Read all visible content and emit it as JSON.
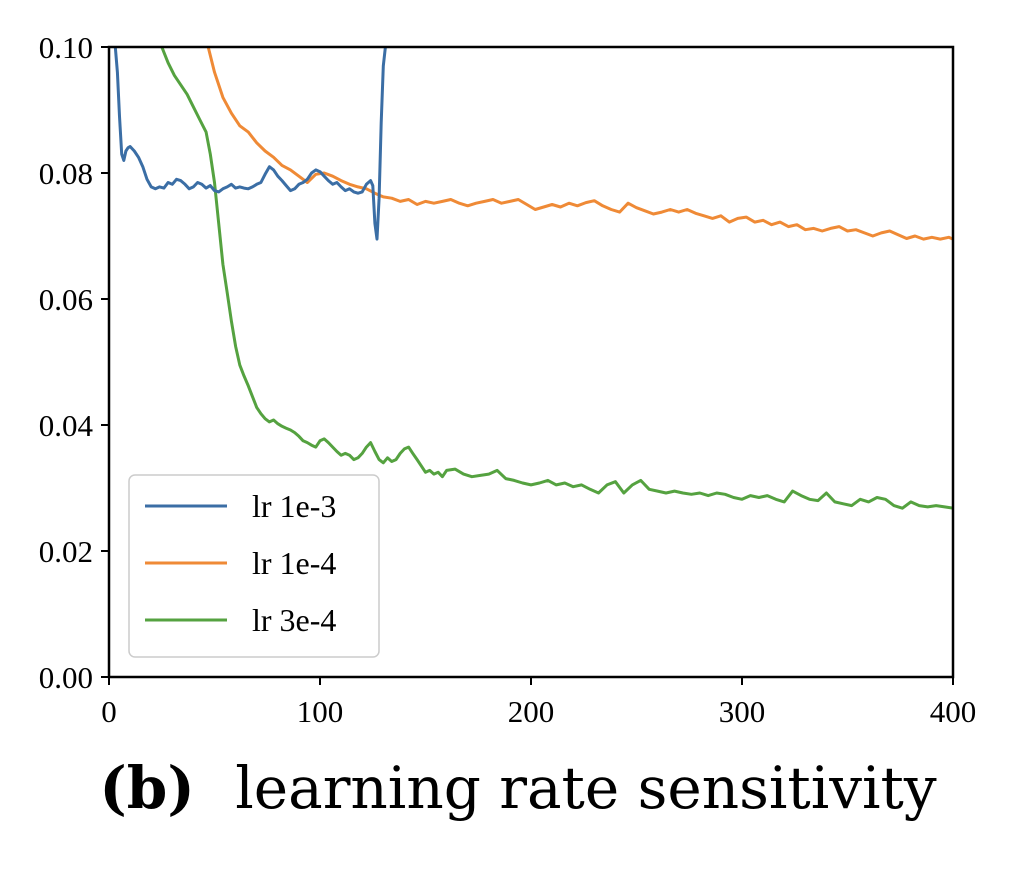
{
  "chart_data": {
    "type": "line",
    "title": "",
    "caption_label": "(b)",
    "caption_text": "learning rate sensitivity",
    "xlabel": "",
    "ylabel": "",
    "xlim": [
      0,
      400
    ],
    "ylim": [
      0.0,
      0.1
    ],
    "xticks": [
      0,
      100,
      200,
      300,
      400
    ],
    "xtick_labels": [
      "0",
      "100",
      "200",
      "300",
      "400"
    ],
    "yticks": [
      0.0,
      0.02,
      0.04,
      0.06,
      0.08,
      0.1
    ],
    "ytick_labels": [
      "0.00",
      "0.02",
      "0.04",
      "0.06",
      "0.08",
      "0.10"
    ],
    "grid": false,
    "legend_position": "lower-left",
    "series": [
      {
        "name": "lr 1e-3",
        "color": "#3b6ea5",
        "x": [
          3,
          4,
          5,
          6,
          7,
          8,
          9,
          10,
          12,
          14,
          16,
          18,
          20,
          22,
          24,
          26,
          28,
          30,
          32,
          34,
          36,
          38,
          40,
          42,
          44,
          46,
          48,
          50,
          52,
          54,
          56,
          58,
          60,
          62,
          64,
          66,
          68,
          70,
          72,
          74,
          76,
          78,
          80,
          82,
          84,
          86,
          88,
          90,
          92,
          94,
          96,
          98,
          100,
          102,
          104,
          106,
          108,
          110,
          112,
          114,
          116,
          118,
          120,
          122,
          124,
          125,
          126,
          127,
          128,
          129,
          130,
          131
        ],
        "y": [
          0.1,
          0.096,
          0.089,
          0.083,
          0.082,
          0.0835,
          0.084,
          0.0842,
          0.0835,
          0.0825,
          0.081,
          0.079,
          0.0778,
          0.0775,
          0.0778,
          0.0776,
          0.0785,
          0.0782,
          0.079,
          0.0788,
          0.0782,
          0.0775,
          0.0778,
          0.0785,
          0.0782,
          0.0776,
          0.078,
          0.0772,
          0.077,
          0.0775,
          0.0778,
          0.0782,
          0.0776,
          0.0778,
          0.0776,
          0.0775,
          0.0778,
          0.0782,
          0.0785,
          0.0798,
          0.081,
          0.0805,
          0.0795,
          0.0788,
          0.078,
          0.0772,
          0.0775,
          0.0782,
          0.0785,
          0.079,
          0.08,
          0.0805,
          0.0802,
          0.0795,
          0.0788,
          0.0782,
          0.0785,
          0.0778,
          0.0772,
          0.0775,
          0.077,
          0.0768,
          0.077,
          0.0782,
          0.0788,
          0.078,
          0.072,
          0.0695,
          0.076,
          0.088,
          0.097,
          0.1
        ]
      },
      {
        "name": "lr 1e-4",
        "color": "#ef8a36",
        "x": [
          47,
          50,
          54,
          58,
          62,
          66,
          70,
          74,
          78,
          82,
          86,
          90,
          94,
          98,
          102,
          106,
          110,
          114,
          118,
          122,
          126,
          130,
          134,
          138,
          142,
          146,
          150,
          154,
          158,
          162,
          166,
          170,
          174,
          178,
          182,
          186,
          190,
          194,
          198,
          202,
          206,
          210,
          214,
          218,
          222,
          226,
          230,
          234,
          238,
          242,
          246,
          250,
          254,
          258,
          262,
          266,
          270,
          274,
          278,
          282,
          286,
          290,
          294,
          298,
          302,
          306,
          310,
          314,
          318,
          322,
          326,
          330,
          334,
          338,
          342,
          346,
          350,
          354,
          358,
          362,
          366,
          370,
          374,
          378,
          382,
          386,
          390,
          394,
          398,
          400
        ],
        "y": [
          0.1,
          0.096,
          0.092,
          0.0895,
          0.0875,
          0.0865,
          0.0848,
          0.0835,
          0.0825,
          0.0812,
          0.0805,
          0.0795,
          0.0785,
          0.0798,
          0.08,
          0.0795,
          0.0788,
          0.0782,
          0.0778,
          0.0775,
          0.0768,
          0.0762,
          0.076,
          0.0755,
          0.0758,
          0.075,
          0.0755,
          0.0752,
          0.0755,
          0.0758,
          0.0752,
          0.0748,
          0.0752,
          0.0755,
          0.0758,
          0.0752,
          0.0755,
          0.0758,
          0.075,
          0.0742,
          0.0746,
          0.075,
          0.0746,
          0.0752,
          0.0748,
          0.0753,
          0.0756,
          0.0748,
          0.0742,
          0.0738,
          0.0752,
          0.0745,
          0.074,
          0.0735,
          0.0738,
          0.0742,
          0.0738,
          0.0742,
          0.0736,
          0.0732,
          0.0728,
          0.0732,
          0.0722,
          0.0728,
          0.073,
          0.0722,
          0.0725,
          0.0718,
          0.0722,
          0.0715,
          0.0718,
          0.071,
          0.0712,
          0.0708,
          0.0712,
          0.0715,
          0.0708,
          0.071,
          0.0705,
          0.07,
          0.0705,
          0.0708,
          0.0702,
          0.0696,
          0.07,
          0.0695,
          0.0698,
          0.0695,
          0.0698,
          0.0695
        ]
      },
      {
        "name": "lr 3e-4",
        "color": "#55a240",
        "x": [
          25,
          28,
          31,
          34,
          37,
          40,
          43,
          46,
          48,
          50,
          52,
          54,
          56,
          58,
          60,
          62,
          64,
          66,
          68,
          70,
          72,
          74,
          76,
          78,
          80,
          82,
          84,
          86,
          88,
          90,
          92,
          94,
          96,
          98,
          100,
          102,
          104,
          106,
          108,
          110,
          112,
          114,
          116,
          118,
          120,
          122,
          124,
          126,
          128,
          130,
          132,
          134,
          136,
          138,
          140,
          142,
          144,
          146,
          148,
          150,
          152,
          154,
          156,
          158,
          160,
          164,
          168,
          172,
          176,
          180,
          184,
          188,
          192,
          196,
          200,
          204,
          208,
          212,
          216,
          220,
          224,
          228,
          232,
          236,
          240,
          244,
          248,
          252,
          256,
          260,
          264,
          268,
          272,
          276,
          280,
          284,
          288,
          292,
          296,
          300,
          304,
          308,
          312,
          316,
          320,
          324,
          328,
          332,
          336,
          340,
          344,
          348,
          352,
          356,
          360,
          364,
          368,
          372,
          376,
          380,
          384,
          388,
          392,
          396,
          400
        ],
        "y": [
          0.1,
          0.0975,
          0.0955,
          0.094,
          0.0925,
          0.0905,
          0.0885,
          0.0865,
          0.083,
          0.0785,
          0.072,
          0.0655,
          0.061,
          0.0565,
          0.0525,
          0.0495,
          0.0478,
          0.0462,
          0.0445,
          0.0428,
          0.0418,
          0.041,
          0.0405,
          0.0408,
          0.0402,
          0.0398,
          0.0395,
          0.0392,
          0.0388,
          0.0382,
          0.0375,
          0.0372,
          0.0368,
          0.0365,
          0.0375,
          0.0378,
          0.0372,
          0.0365,
          0.0358,
          0.0352,
          0.0355,
          0.0352,
          0.0345,
          0.0348,
          0.0355,
          0.0365,
          0.0372,
          0.0358,
          0.0345,
          0.034,
          0.0348,
          0.0342,
          0.0345,
          0.0355,
          0.0362,
          0.0365,
          0.0355,
          0.0345,
          0.0335,
          0.0325,
          0.0328,
          0.0322,
          0.0325,
          0.0318,
          0.0328,
          0.033,
          0.0322,
          0.0318,
          0.032,
          0.0322,
          0.0328,
          0.0315,
          0.0312,
          0.0308,
          0.0305,
          0.0308,
          0.0312,
          0.0305,
          0.0308,
          0.0302,
          0.0305,
          0.0298,
          0.0292,
          0.0305,
          0.031,
          0.0292,
          0.0305,
          0.0312,
          0.0298,
          0.0295,
          0.0292,
          0.0295,
          0.0292,
          0.029,
          0.0292,
          0.0288,
          0.0292,
          0.029,
          0.0285,
          0.0282,
          0.0288,
          0.0285,
          0.0288,
          0.0282,
          0.0278,
          0.0295,
          0.0288,
          0.0282,
          0.028,
          0.0292,
          0.0278,
          0.0275,
          0.0272,
          0.0282,
          0.0278,
          0.0285,
          0.0282,
          0.0272,
          0.0268,
          0.0278,
          0.0272,
          0.027,
          0.0272,
          0.027,
          0.0268
        ]
      }
    ]
  }
}
